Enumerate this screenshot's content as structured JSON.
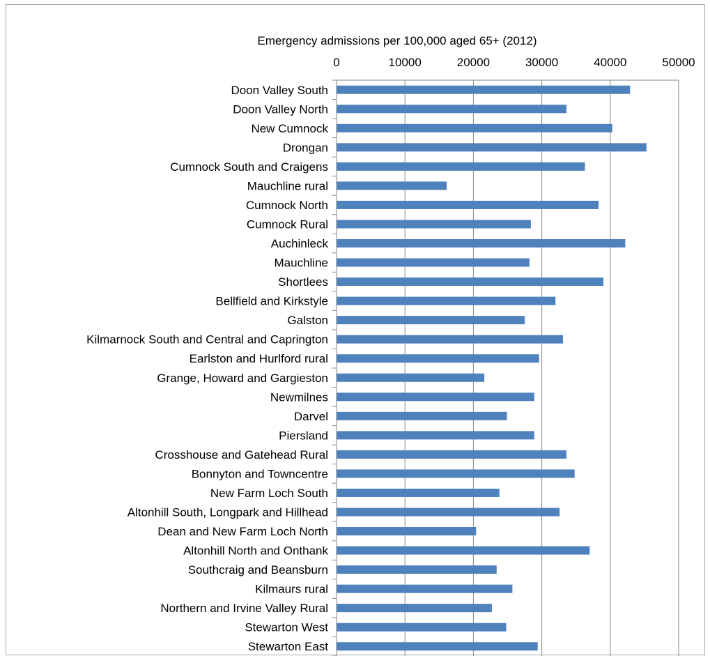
{
  "chart_data": {
    "type": "bar",
    "orientation": "horizontal",
    "title": "Emergency admissions per 100,000 aged 65+ (2012)",
    "x_axis_position": "top",
    "xlim": [
      0,
      50000
    ],
    "x_ticks": [
      "0",
      "10000",
      "20000",
      "30000",
      "40000",
      "50000"
    ],
    "grid": true,
    "legend": "none",
    "bar_color": "#4f81bd",
    "categories": [
      "Doon Valley South",
      "Doon Valley North",
      "New Cumnock",
      "Drongan",
      "Cumnock South and Craigens",
      "Mauchline rural",
      "Cumnock North",
      "Cumnock Rural",
      "Auchinleck",
      "Mauchline",
      "Shortlees",
      "Bellfield and Kirkstyle",
      "Galston",
      "Kilmarnock South and Central and Caprington",
      "Earlston and Hurlford rural",
      "Grange, Howard and Gargieston",
      "Newmilnes",
      "Darvel",
      "Piersland",
      "Crosshouse and Gatehead Rural",
      "Bonnyton and Towncentre",
      "New Farm Loch South",
      "Altonhill South, Longpark and Hillhead",
      "Dean and New Farm Loch North",
      "Altonhill North and Onthank",
      "Southcraig and Beansburn",
      "Kilmaurs rural",
      "Northern and Irvine Valley Rural",
      "Stewarton West",
      "Stewarton East"
    ],
    "values": [
      42900,
      33600,
      40300,
      45300,
      36300,
      16100,
      38300,
      28400,
      42200,
      28200,
      39000,
      32000,
      27500,
      33100,
      29600,
      21600,
      28900,
      24900,
      28900,
      33600,
      34800,
      23800,
      32600,
      20400,
      37000,
      23400,
      25700,
      22700,
      24800,
      29400
    ]
  }
}
